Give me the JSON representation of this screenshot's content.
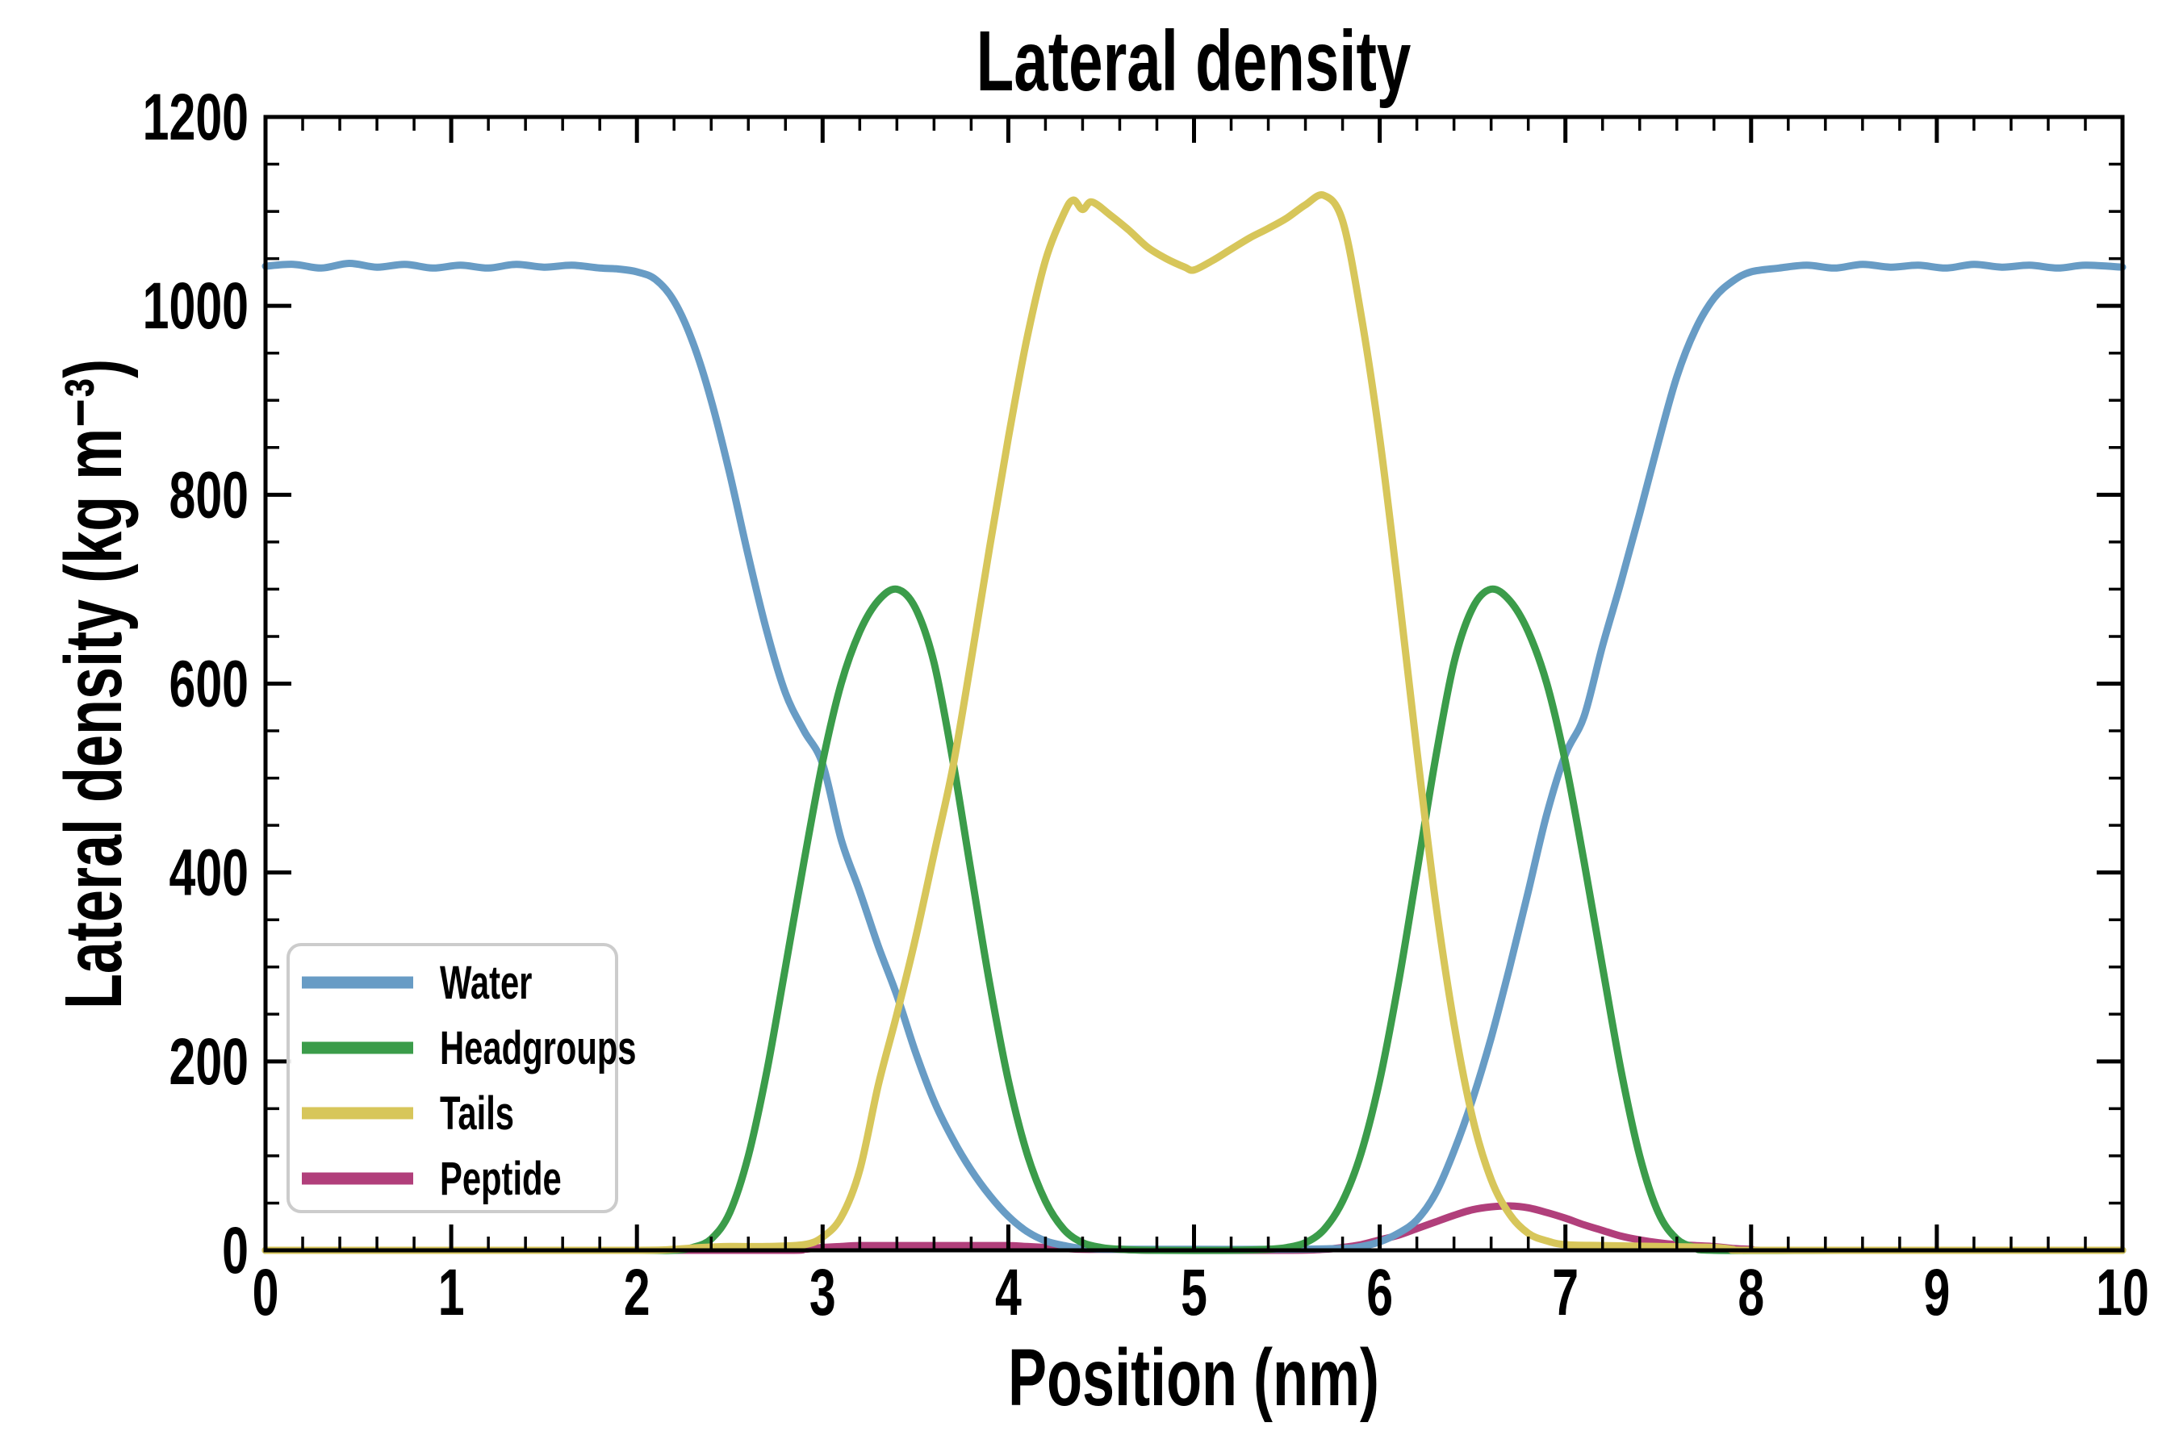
{
  "chart_data": {
    "type": "line",
    "title": "Lateral density",
    "xlabel": "Position (nm)",
    "ylabel": "Lateral density (kg m⁻³)",
    "xlim": [
      0,
      10
    ],
    "ylim": [
      0,
      1200
    ],
    "x_major": 1,
    "x_minor": 0.2,
    "y_major": 200,
    "y_minor": 50,
    "x_tick_labels": [
      "0",
      "1",
      "2",
      "3",
      "4",
      "5",
      "6",
      "7",
      "8",
      "9",
      "10"
    ],
    "y_tick_labels": [
      "0",
      "200",
      "400",
      "600",
      "800",
      "1000",
      "1200"
    ],
    "grid": false,
    "legend_position": "lower left",
    "background": "#ffffff",
    "axis_color": "#000000",
    "legend_border_color": "#cccccc",
    "draw_order": [
      3,
      0,
      1,
      2
    ],
    "series": [
      {
        "name": "Water",
        "color": "#689CC5",
        "points": [
          [
            0,
            1042
          ],
          [
            0.15,
            1044
          ],
          [
            0.3,
            1040
          ],
          [
            0.45,
            1045
          ],
          [
            0.6,
            1041
          ],
          [
            0.75,
            1044
          ],
          [
            0.9,
            1040
          ],
          [
            1.05,
            1043
          ],
          [
            1.2,
            1040
          ],
          [
            1.35,
            1044
          ],
          [
            1.5,
            1041
          ],
          [
            1.65,
            1043
          ],
          [
            1.8,
            1040
          ],
          [
            1.9,
            1039
          ],
          [
            2,
            1036
          ],
          [
            2.1,
            1028
          ],
          [
            2.2,
            1005
          ],
          [
            2.3,
            962
          ],
          [
            2.4,
            900
          ],
          [
            2.5,
            822
          ],
          [
            2.6,
            735
          ],
          [
            2.7,
            655
          ],
          [
            2.8,
            590
          ],
          [
            2.9,
            550
          ],
          [
            3,
            515
          ],
          [
            3.1,
            435
          ],
          [
            3.2,
            380
          ],
          [
            3.3,
            322
          ],
          [
            3.4,
            270
          ],
          [
            3.5,
            210
          ],
          [
            3.6,
            158
          ],
          [
            3.7,
            118
          ],
          [
            3.8,
            85
          ],
          [
            3.9,
            58
          ],
          [
            4,
            36
          ],
          [
            4.1,
            20
          ],
          [
            4.2,
            10
          ],
          [
            4.3,
            5
          ],
          [
            4.4,
            2
          ],
          [
            4.6,
            1
          ],
          [
            5,
            1
          ],
          [
            5.5,
            1
          ],
          [
            5.8,
            2
          ],
          [
            5.9,
            4
          ],
          [
            6,
            9
          ],
          [
            6.1,
            18
          ],
          [
            6.2,
            32
          ],
          [
            6.3,
            60
          ],
          [
            6.4,
            105
          ],
          [
            6.5,
            160
          ],
          [
            6.6,
            225
          ],
          [
            6.7,
            300
          ],
          [
            6.8,
            380
          ],
          [
            6.9,
            462
          ],
          [
            7,
            525
          ],
          [
            7.1,
            565
          ],
          [
            7.2,
            640
          ],
          [
            7.3,
            708
          ],
          [
            7.4,
            780
          ],
          [
            7.5,
            855
          ],
          [
            7.6,
            925
          ],
          [
            7.7,
            975
          ],
          [
            7.8,
            1008
          ],
          [
            7.9,
            1026
          ],
          [
            8,
            1036
          ],
          [
            8.15,
            1040
          ],
          [
            8.3,
            1043
          ],
          [
            8.45,
            1040
          ],
          [
            8.6,
            1044
          ],
          [
            8.75,
            1041
          ],
          [
            8.9,
            1043
          ],
          [
            9.05,
            1040
          ],
          [
            9.2,
            1044
          ],
          [
            9.35,
            1041
          ],
          [
            9.5,
            1043
          ],
          [
            9.65,
            1040
          ],
          [
            9.8,
            1043
          ],
          [
            10,
            1041
          ]
        ]
      },
      {
        "name": "Headgroups",
        "color": "#3B9C4A",
        "points": [
          [
            0,
            0
          ],
          [
            1,
            0
          ],
          [
            2,
            0
          ],
          [
            2.2,
            0
          ],
          [
            2.3,
            3
          ],
          [
            2.4,
            12
          ],
          [
            2.5,
            40
          ],
          [
            2.6,
            100
          ],
          [
            2.7,
            190
          ],
          [
            2.8,
            300
          ],
          [
            2.9,
            412
          ],
          [
            3,
            517
          ],
          [
            3.1,
            600
          ],
          [
            3.2,
            655
          ],
          [
            3.3,
            688
          ],
          [
            3.4,
            700
          ],
          [
            3.5,
            680
          ],
          [
            3.6,
            622
          ],
          [
            3.7,
            520
          ],
          [
            3.8,
            400
          ],
          [
            3.9,
            282
          ],
          [
            4,
            180
          ],
          [
            4.1,
            103
          ],
          [
            4.2,
            52
          ],
          [
            4.3,
            22
          ],
          [
            4.4,
            8
          ],
          [
            4.5,
            3
          ],
          [
            4.6,
            1
          ],
          [
            4.8,
            0
          ],
          [
            5.2,
            0
          ],
          [
            5.4,
            1
          ],
          [
            5.5,
            3
          ],
          [
            5.6,
            8
          ],
          [
            5.7,
            22
          ],
          [
            5.8,
            52
          ],
          [
            5.9,
            103
          ],
          [
            6,
            180
          ],
          [
            6.1,
            282
          ],
          [
            6.2,
            400
          ],
          [
            6.3,
            520
          ],
          [
            6.4,
            622
          ],
          [
            6.5,
            680
          ],
          [
            6.6,
            700
          ],
          [
            6.7,
            688
          ],
          [
            6.8,
            655
          ],
          [
            6.9,
            600
          ],
          [
            7,
            517
          ],
          [
            7.1,
            412
          ],
          [
            7.2,
            300
          ],
          [
            7.3,
            190
          ],
          [
            7.4,
            100
          ],
          [
            7.5,
            40
          ],
          [
            7.6,
            12
          ],
          [
            7.7,
            3
          ],
          [
            7.8,
            0
          ],
          [
            8.5,
            0
          ],
          [
            9.25,
            0
          ],
          [
            10,
            0
          ]
        ]
      },
      {
        "name": "Tails",
        "color": "#D7C65A",
        "points": [
          [
            0,
            0
          ],
          [
            1,
            0
          ],
          [
            2,
            0
          ],
          [
            2.2,
            1
          ],
          [
            2.35,
            3
          ],
          [
            2.5,
            4
          ],
          [
            2.7,
            4
          ],
          [
            2.9,
            6
          ],
          [
            3,
            14
          ],
          [
            3.1,
            35
          ],
          [
            3.2,
            85
          ],
          [
            3.3,
            175
          ],
          [
            3.4,
            250
          ],
          [
            3.5,
            330
          ],
          [
            3.6,
            420
          ],
          [
            3.7,
            510
          ],
          [
            3.8,
            625
          ],
          [
            3.9,
            745
          ],
          [
            4,
            860
          ],
          [
            4.1,
            965
          ],
          [
            4.2,
            1048
          ],
          [
            4.3,
            1098
          ],
          [
            4.35,
            1112
          ],
          [
            4.4,
            1102
          ],
          [
            4.45,
            1110
          ],
          [
            4.55,
            1096
          ],
          [
            4.65,
            1080
          ],
          [
            4.75,
            1062
          ],
          [
            4.85,
            1050
          ],
          [
            4.95,
            1041
          ],
          [
            5,
            1038
          ],
          [
            5.1,
            1048
          ],
          [
            5.2,
            1060
          ],
          [
            5.3,
            1072
          ],
          [
            5.4,
            1082
          ],
          [
            5.5,
            1093
          ],
          [
            5.6,
            1107
          ],
          [
            5.7,
            1117
          ],
          [
            5.8,
            1090
          ],
          [
            5.9,
            990
          ],
          [
            6,
            860
          ],
          [
            6.1,
            700
          ],
          [
            6.2,
            530
          ],
          [
            6.3,
            370
          ],
          [
            6.4,
            240
          ],
          [
            6.5,
            140
          ],
          [
            6.6,
            75
          ],
          [
            6.7,
            38
          ],
          [
            6.8,
            18
          ],
          [
            6.9,
            10
          ],
          [
            7,
            6
          ],
          [
            7.2,
            5
          ],
          [
            7.5,
            4
          ],
          [
            7.8,
            3
          ],
          [
            7.9,
            1
          ],
          [
            8,
            0
          ],
          [
            9,
            0
          ],
          [
            10,
            0
          ]
        ]
      },
      {
        "name": "Peptide",
        "color": "#B13F7B",
        "points": [
          [
            0,
            0
          ],
          [
            1,
            0
          ],
          [
            2,
            0
          ],
          [
            2.8,
            0
          ],
          [
            2.9,
            1
          ],
          [
            3,
            3
          ],
          [
            3.1,
            4
          ],
          [
            3.2,
            5
          ],
          [
            3.5,
            5
          ],
          [
            3.8,
            5
          ],
          [
            4,
            5
          ],
          [
            4.1,
            4
          ],
          [
            4.2,
            3
          ],
          [
            4.3,
            2
          ],
          [
            4.4,
            1
          ],
          [
            4.6,
            1
          ],
          [
            4.8,
            0
          ],
          [
            5.5,
            0
          ],
          [
            5.7,
            1
          ],
          [
            5.8,
            3
          ],
          [
            5.9,
            6
          ],
          [
            6,
            11
          ],
          [
            6.1,
            16
          ],
          [
            6.2,
            23
          ],
          [
            6.3,
            30
          ],
          [
            6.4,
            37
          ],
          [
            6.5,
            43
          ],
          [
            6.6,
            46
          ],
          [
            6.7,
            47
          ],
          [
            6.8,
            45
          ],
          [
            6.9,
            40
          ],
          [
            7,
            34
          ],
          [
            7.1,
            27
          ],
          [
            7.2,
            21
          ],
          [
            7.3,
            15
          ],
          [
            7.4,
            11
          ],
          [
            7.5,
            8
          ],
          [
            7.6,
            6
          ],
          [
            7.7,
            5
          ],
          [
            7.8,
            4
          ],
          [
            7.9,
            2
          ],
          [
            8,
            1
          ],
          [
            8.1,
            0
          ],
          [
            9,
            0
          ],
          [
            10,
            0
          ]
        ]
      }
    ]
  }
}
